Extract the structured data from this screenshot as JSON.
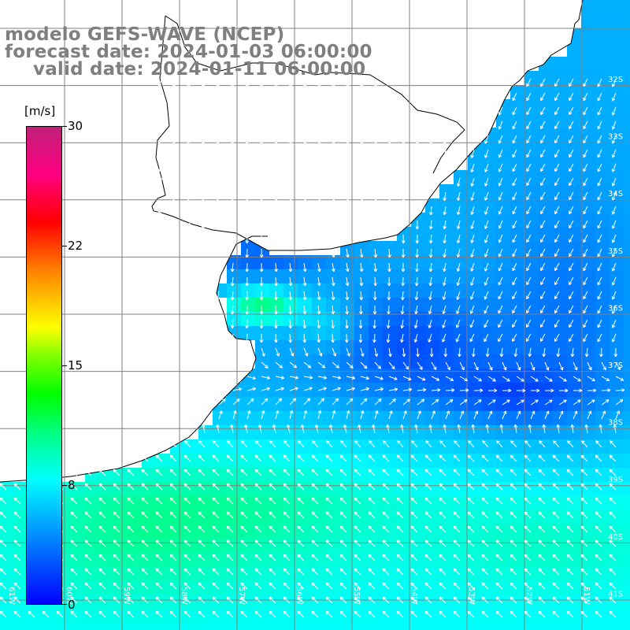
{
  "header": {
    "line1": "modelo GEFS-WAVE (NCEP)",
    "line2": "forecast date: 2024-01-03 06:00:00",
    "line3": "valid date: 2024-01-11 06:00:00"
  },
  "colorbar": {
    "unit": "[m/s]",
    "ticks": [
      "30",
      "22",
      "15",
      "8",
      "0"
    ],
    "colors": [
      "#0000ff",
      "#0080ff",
      "#00ffff",
      "#00ff80",
      "#00ff00",
      "#ffff00",
      "#ff8000",
      "#ff0000",
      "#c0207a"
    ]
  },
  "map": {
    "lat_labels": [
      "32S",
      "33S",
      "34S",
      "35S",
      "36S",
      "37S",
      "38S",
      "39S",
      "40S",
      "41S"
    ],
    "lon_labels": [
      "61W",
      "60W",
      "59W",
      "58W",
      "57W",
      "56W",
      "55W",
      "54W",
      "53W",
      "52W",
      "51W"
    ],
    "land_color": "#ffffff",
    "grid_color": "#808080",
    "arrow_color": "#ffffff"
  }
}
